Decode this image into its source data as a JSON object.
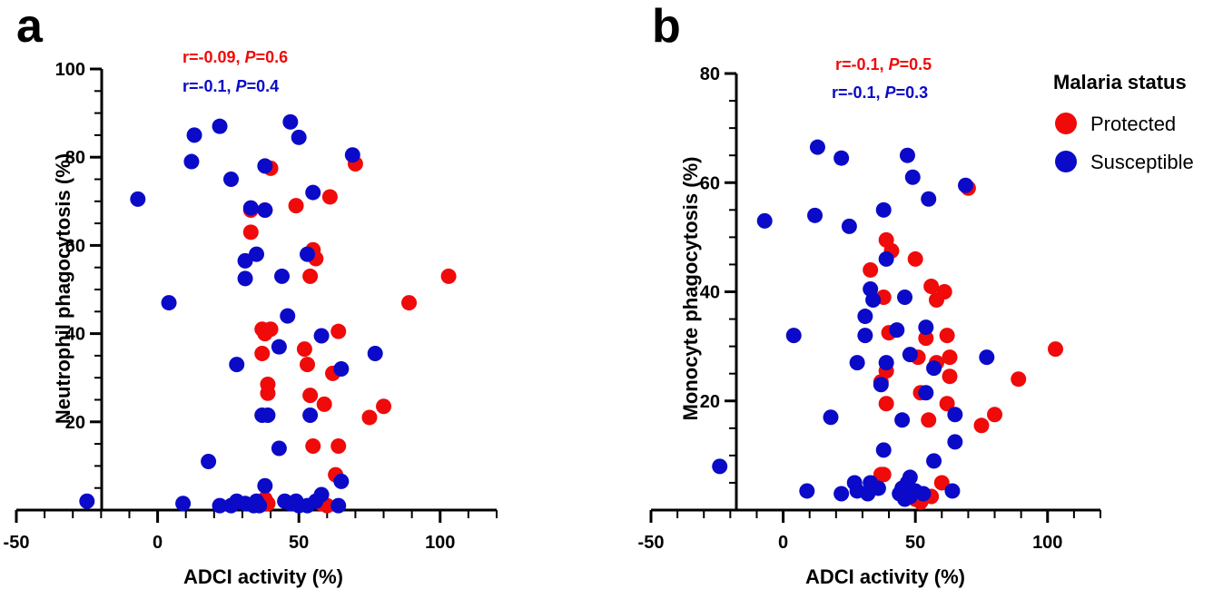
{
  "colors": {
    "protected": "#f00a0a",
    "susceptible": "#0a0ac8",
    "axis": "#000000"
  },
  "legend": {
    "title": "Malaria status",
    "items": [
      {
        "label": "Protected",
        "series": "protected"
      },
      {
        "label": "Susceptible",
        "series": "susceptible"
      }
    ]
  },
  "chart_data": [
    {
      "type": "scatter",
      "panel_label": "a",
      "title": "",
      "xlabel": "ADCI activity (%)",
      "ylabel": "Neutrophil phagocytosis (%)",
      "xlim": [
        -50,
        120
      ],
      "ylim": [
        0,
        100
      ],
      "xticks": [
        -50,
        0,
        50,
        100
      ],
      "xtick_labels": [
        "-50",
        "0",
        "50",
        "100"
      ],
      "yticks": [
        20,
        40,
        60,
        80,
        100
      ],
      "ytick_labels": [
        "20",
        "40",
        "60",
        "80",
        "100"
      ],
      "stats": [
        {
          "series": "protected",
          "r_text": "r=-0.09, ",
          "p_label": "P",
          "p_value": "=0.6"
        },
        {
          "series": "susceptible",
          "r_text": "r=-0.1, ",
          "p_label": "P",
          "p_value": "=0.4"
        }
      ],
      "series": [
        {
          "name": "Protected",
          "key": "protected",
          "points": [
            [
              40,
              77.5
            ],
            [
              70,
              78.5
            ],
            [
              61,
              71
            ],
            [
              49,
              69
            ],
            [
              33,
              68
            ],
            [
              38,
              68
            ],
            [
              33,
              63
            ],
            [
              55,
              59
            ],
            [
              56,
              57
            ],
            [
              54,
              53
            ],
            [
              103,
              53
            ],
            [
              89,
              47
            ],
            [
              37,
              41
            ],
            [
              40,
              41
            ],
            [
              64,
              40.5
            ],
            [
              38,
              40
            ],
            [
              52,
              36.5
            ],
            [
              37,
              35.5
            ],
            [
              62,
              31
            ],
            [
              53,
              33
            ],
            [
              39,
              28.5
            ],
            [
              39,
              26.5
            ],
            [
              54,
              26
            ],
            [
              59,
              24
            ],
            [
              80,
              23.5
            ],
            [
              75,
              21
            ],
            [
              55,
              14.5
            ],
            [
              64,
              14.5
            ],
            [
              63,
              8
            ],
            [
              38,
              2.5
            ],
            [
              37,
              1.5
            ],
            [
              39,
              1.5
            ],
            [
              58,
              1.5
            ],
            [
              60,
              1
            ]
          ]
        },
        {
          "name": "Susceptible",
          "key": "susceptible",
          "points": [
            [
              47,
              88
            ],
            [
              22,
              87
            ],
            [
              13,
              85
            ],
            [
              50,
              84.5
            ],
            [
              69,
              80.5
            ],
            [
              12,
              79
            ],
            [
              38,
              78
            ],
            [
              26,
              75
            ],
            [
              55,
              72
            ],
            [
              -7,
              70.5
            ],
            [
              33,
              68.5
            ],
            [
              38,
              68
            ],
            [
              35,
              58
            ],
            [
              53,
              58
            ],
            [
              31,
              56.5
            ],
            [
              44,
              53
            ],
            [
              31,
              52.5
            ],
            [
              4,
              47
            ],
            [
              46,
              44
            ],
            [
              58,
              39.5
            ],
            [
              43,
              37
            ],
            [
              77,
              35.5
            ],
            [
              28,
              33
            ],
            [
              65,
              32
            ],
            [
              37,
              21.5
            ],
            [
              39,
              21.5
            ],
            [
              54,
              21.5
            ],
            [
              43,
              14
            ],
            [
              18,
              11
            ],
            [
              38,
              5.5
            ],
            [
              65,
              6.5
            ],
            [
              -25,
              2
            ],
            [
              9,
              1.5
            ],
            [
              22,
              1
            ],
            [
              26,
              1
            ],
            [
              28,
              2
            ],
            [
              31,
              1.5
            ],
            [
              34,
              1
            ],
            [
              35,
              2
            ],
            [
              36,
              1
            ],
            [
              45,
              2
            ],
            [
              47,
              1.5
            ],
            [
              49,
              2
            ],
            [
              50,
              1
            ],
            [
              53,
              1
            ],
            [
              56,
              2
            ],
            [
              58,
              3.5
            ],
            [
              64,
              1
            ]
          ]
        }
      ]
    },
    {
      "type": "scatter",
      "panel_label": "b",
      "title": "",
      "xlabel": "ADCI activity (%)",
      "ylabel": "Monocyte phagocytosis (%)",
      "xlim": [
        -50,
        120
      ],
      "ylim": [
        0,
        80
      ],
      "xticks": [
        -50,
        0,
        50,
        100
      ],
      "xtick_labels": [
        "-50",
        "0",
        "50",
        "100"
      ],
      "yticks": [
        20,
        40,
        60,
        80
      ],
      "ytick_labels": [
        "20",
        "40",
        "60",
        "80"
      ],
      "stats": [
        {
          "series": "protected",
          "r_text": "r=-0.1, ",
          "p_label": "P",
          "p_value": "=0.5"
        },
        {
          "series": "susceptible",
          "r_text": "r=-0.1, ",
          "p_label": "P",
          "p_value": "=0.3"
        }
      ],
      "series": [
        {
          "name": "Protected",
          "key": "protected",
          "points": [
            [
              70,
              59
            ],
            [
              39,
              49.5
            ],
            [
              41,
              47.5
            ],
            [
              50,
              46
            ],
            [
              33,
              44
            ],
            [
              56,
              41
            ],
            [
              61,
              40
            ],
            [
              58,
              38.5
            ],
            [
              38,
              39
            ],
            [
              103,
              29.5
            ],
            [
              89,
              24
            ],
            [
              40,
              32.5
            ],
            [
              62,
              32
            ],
            [
              54,
              31.5
            ],
            [
              63,
              28
            ],
            [
              51,
              28
            ],
            [
              58,
              27
            ],
            [
              39,
              25.5
            ],
            [
              63,
              24.5
            ],
            [
              37,
              23.5
            ],
            [
              52,
              21.5
            ],
            [
              62,
              19.5
            ],
            [
              39,
              19.5
            ],
            [
              80,
              17.5
            ],
            [
              75,
              15.5
            ],
            [
              55,
              16.5
            ],
            [
              60,
              5
            ],
            [
              37,
              6.5
            ],
            [
              38,
              6.5
            ],
            [
              56,
              2.5
            ],
            [
              52,
              1.5
            ],
            [
              50,
              2
            ]
          ]
        },
        {
          "name": "Susceptible",
          "key": "susceptible",
          "points": [
            [
              13,
              66.5
            ],
            [
              47,
              65
            ],
            [
              22,
              64.5
            ],
            [
              49,
              61
            ],
            [
              69,
              59.5
            ],
            [
              55,
              57
            ],
            [
              38,
              55
            ],
            [
              -7,
              53
            ],
            [
              12,
              54
            ],
            [
              25,
              52
            ],
            [
              39,
              46
            ],
            [
              33,
              40.5
            ],
            [
              34,
              38.5
            ],
            [
              46,
              39
            ],
            [
              31,
              35.5
            ],
            [
              54,
              33.5
            ],
            [
              4,
              32
            ],
            [
              31,
              32
            ],
            [
              43,
              33
            ],
            [
              48,
              28.5
            ],
            [
              77,
              28
            ],
            [
              28,
              27
            ],
            [
              39,
              27
            ],
            [
              57,
              26
            ],
            [
              37,
              23
            ],
            [
              54,
              21.5
            ],
            [
              18,
              17
            ],
            [
              65,
              17.5
            ],
            [
              45,
              16.5
            ],
            [
              65,
              12.5
            ],
            [
              38,
              11
            ],
            [
              57,
              9
            ],
            [
              -24,
              8
            ],
            [
              9,
              3.5
            ],
            [
              22,
              3
            ],
            [
              27,
              5
            ],
            [
              28,
              3.5
            ],
            [
              32,
              3
            ],
            [
              33,
              5
            ],
            [
              36,
              4
            ],
            [
              44,
              3
            ],
            [
              45,
              4
            ],
            [
              47,
              5
            ],
            [
              48,
              6
            ],
            [
              48,
              2.5
            ],
            [
              50,
              3.5
            ],
            [
              53,
              3
            ],
            [
              64,
              3.5
            ],
            [
              46,
              2
            ]
          ]
        }
      ]
    }
  ]
}
